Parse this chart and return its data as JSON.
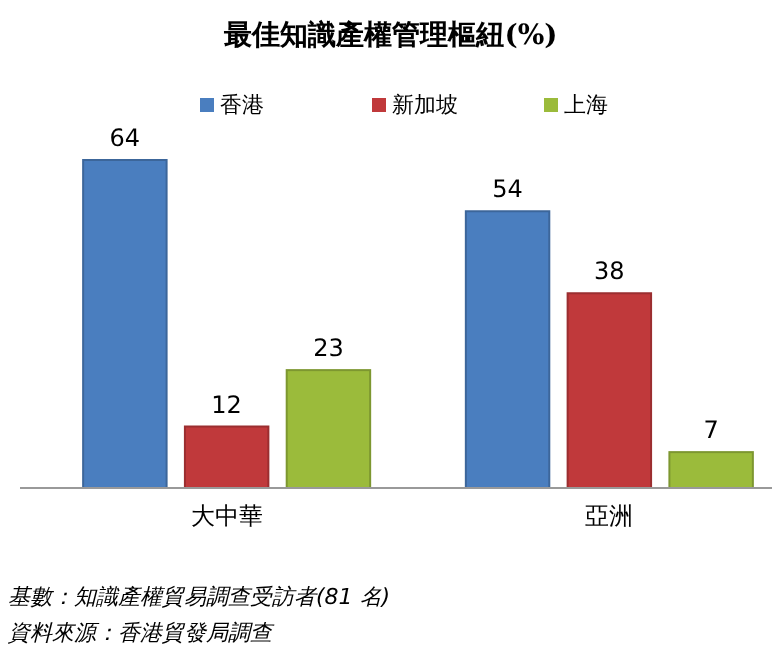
{
  "chart_data": {
    "type": "bar",
    "title": "最佳知識產權管理樞紐(%)",
    "categories": [
      "大中華",
      "亞洲"
    ],
    "series": [
      {
        "name": "香港",
        "color": "#4a7ebf",
        "values": [
          64,
          54
        ]
      },
      {
        "name": "新加坡",
        "color": "#c0393b",
        "values": [
          12,
          38
        ]
      },
      {
        "name": "上海",
        "color": "#9bbb3b",
        "values": [
          23,
          7
        ]
      }
    ],
    "data_labels": true,
    "legend": "top",
    "grid": false,
    "annotations": [
      "基數：知識產權貿易調查受訪者(81 名)",
      "資料來源：香港貿發局調查"
    ]
  }
}
